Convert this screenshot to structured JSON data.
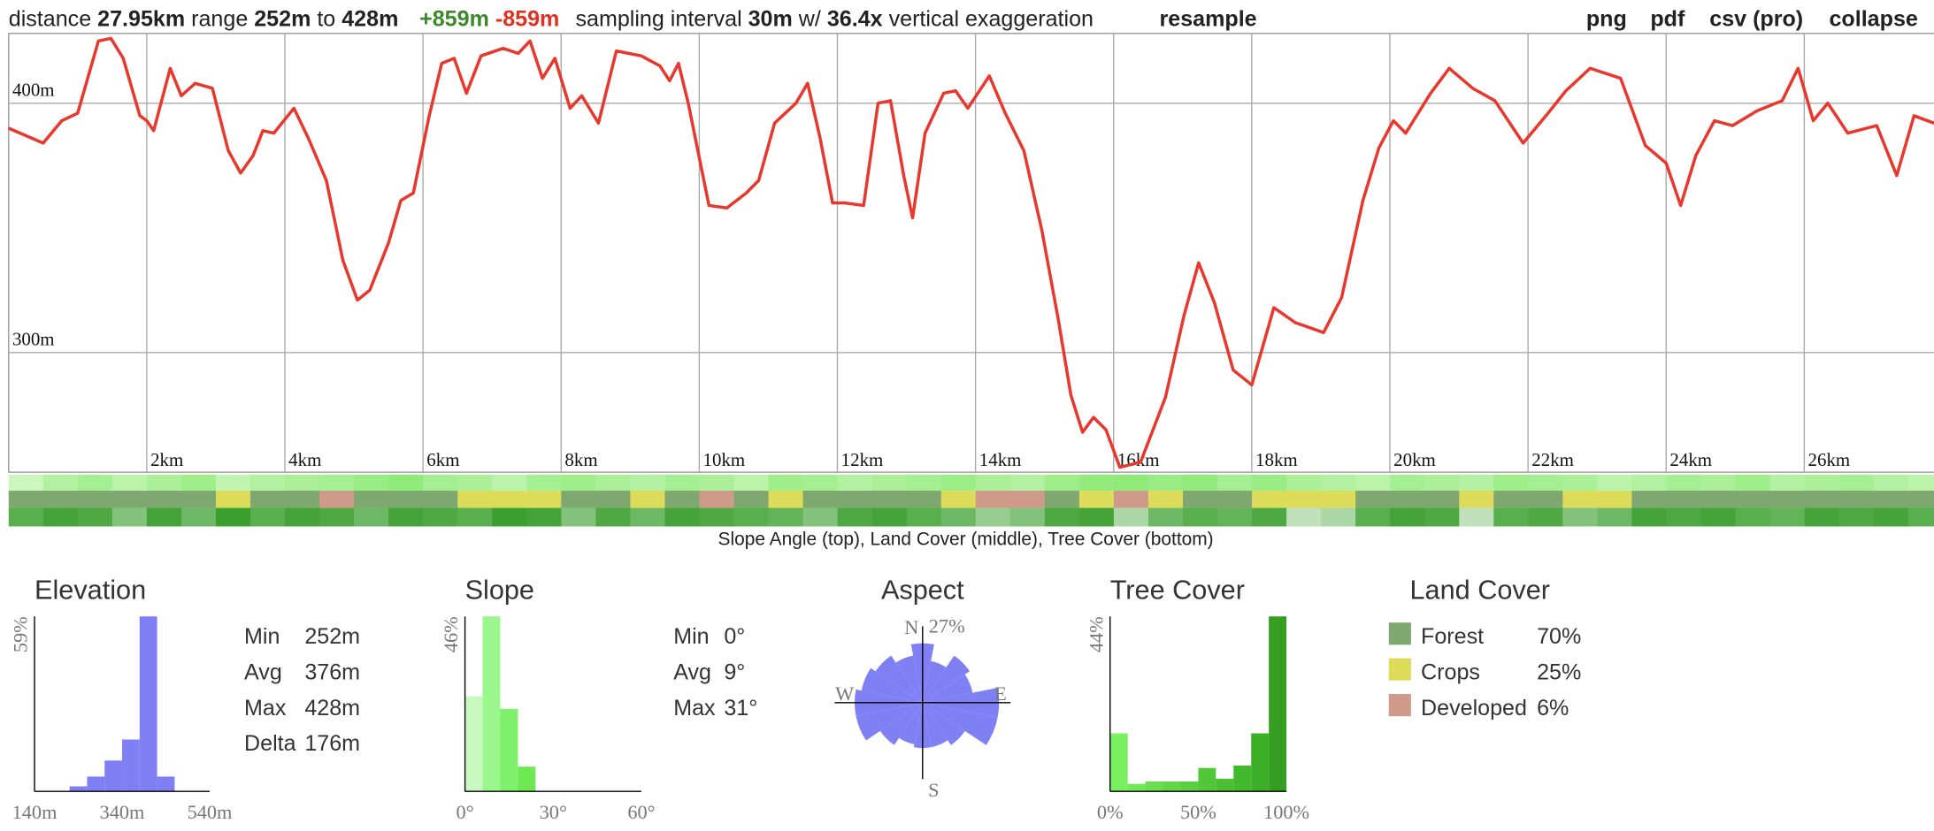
{
  "header": {
    "distance_label": "distance",
    "distance": "27.95km",
    "range_label": "range",
    "range_min": "252m",
    "to": "to",
    "range_max": "428m",
    "gain": "+859m",
    "loss": "-859m",
    "sampling_label": "sampling interval",
    "sampling": "30m",
    "with": "w/",
    "exaggeration": "36.4x",
    "exaggeration_label": "vertical exaggeration",
    "resample": "resample",
    "links": [
      "png",
      "pdf",
      "csv",
      "(pro)",
      "collapse"
    ]
  },
  "chart_data": [
    {
      "type": "line",
      "color": "#e8372c",
      "grid": true,
      "x": [
        0,
        0.5,
        0.77,
        1.0,
        1.3,
        1.48,
        1.66,
        1.9,
        2.0,
        2.1,
        2.34,
        2.5,
        2.7,
        2.95,
        3.18,
        3.36,
        3.54,
        3.68,
        3.84,
        4.13,
        4.34,
        4.6,
        4.84,
        5.05,
        5.23,
        5.5,
        5.68,
        5.86,
        6.09,
        6.27,
        6.45,
        6.63,
        6.84,
        7.16,
        7.38,
        7.55,
        7.73,
        7.91,
        8.13,
        8.3,
        8.54,
        8.8,
        9.16,
        9.43,
        9.57,
        9.7,
        9.84,
        10.14,
        10.4,
        10.68,
        10.86,
        11.09,
        11.4,
        11.57,
        11.75,
        11.93,
        12.1,
        12.38,
        12.59,
        12.77,
        12.96,
        13.09,
        13.27,
        13.54,
        13.71,
        13.89,
        14.2,
        14.43,
        14.7,
        14.96,
        15.2,
        15.38,
        15.55,
        15.71,
        15.89,
        16.09,
        16.39,
        16.75,
        17.02,
        17.23,
        17.46,
        17.73,
        18.0,
        18.32,
        18.63,
        19.04,
        19.3,
        19.61,
        19.84,
        20.05,
        20.23,
        20.59,
        20.86,
        21.2,
        21.52,
        21.93,
        22.29,
        22.55,
        22.9,
        23.34,
        23.7,
        24.0,
        24.21,
        24.43,
        24.7,
        24.96,
        25.32,
        25.68,
        25.91,
        26.13,
        26.34,
        26.63,
        27.05,
        27.34,
        27.59,
        27.88
      ],
      "values": [
        390,
        384,
        393,
        396,
        425,
        426,
        418,
        395,
        393,
        389,
        414,
        403,
        408,
        406,
        381,
        372,
        379,
        389,
        388,
        398,
        386,
        369,
        337,
        321,
        325,
        344,
        361,
        364,
        395,
        416,
        418,
        404,
        419,
        422,
        420,
        425,
        410,
        418,
        398,
        403,
        392,
        421,
        419,
        415,
        409,
        416,
        400,
        359,
        358,
        364,
        369,
        392,
        400,
        408,
        386,
        360,
        360,
        359,
        400,
        401,
        371,
        354,
        388,
        404,
        405,
        398,
        411,
        396,
        381,
        349,
        313,
        283,
        268,
        274,
        269,
        254,
        256,
        282,
        315,
        336,
        320,
        293,
        287,
        318,
        312,
        308,
        322,
        361,
        382,
        393,
        388,
        404,
        414,
        406,
        401,
        384,
        396,
        405,
        414,
        410,
        383,
        376,
        359,
        379,
        393,
        391,
        397,
        401,
        414,
        393,
        400,
        388,
        391,
        371,
        395,
        392
      ],
      "xlim": [
        0,
        27.95
      ],
      "ylim": [
        252,
        428
      ],
      "xticks": [
        {
          "value": 2,
          "label": "2km"
        },
        {
          "value": 4,
          "label": "4km"
        },
        {
          "value": 6,
          "label": "6km"
        },
        {
          "value": 8,
          "label": "8km"
        },
        {
          "value": 10,
          "label": "10km"
        },
        {
          "value": 12,
          "label": "12km"
        },
        {
          "value": 14,
          "label": "14km"
        },
        {
          "value": 16,
          "label": "16km"
        },
        {
          "value": 18,
          "label": "18km"
        },
        {
          "value": 20,
          "label": "20km"
        },
        {
          "value": 22,
          "label": "22km"
        },
        {
          "value": 24,
          "label": "24km"
        },
        {
          "value": 26,
          "label": "26km"
        }
      ],
      "yticks": [
        {
          "value": 300,
          "label": "300m"
        },
        {
          "value": 400,
          "label": "400m"
        }
      ]
    },
    {
      "type": "histogram",
      "title": "Elevation",
      "color": "#8080f5",
      "bins": [
        220,
        260,
        300,
        340,
        380,
        420,
        460
      ],
      "values": [
        1.7,
        5,
        10.4,
        17.5,
        59,
        5
      ],
      "xlim": [
        140,
        540
      ],
      "ylim": [
        0,
        59
      ],
      "xticks": [
        {
          "value": 140,
          "label": "140m"
        },
        {
          "value": 340,
          "label": "340m"
        },
        {
          "value": 540,
          "label": "540m"
        }
      ],
      "yticks": [
        {
          "value": 59,
          "label": "59%"
        }
      ]
    },
    {
      "type": "histogram",
      "title": "Slope",
      "colors": [
        "#c8f7c0",
        "#9af78c",
        "#7ef06c",
        "#6ee850"
      ],
      "bins": [
        0,
        6,
        12,
        18,
        24
      ],
      "values": [
        25,
        46,
        21.7,
        6.5
      ],
      "xlim": [
        0,
        60
      ],
      "ylim": [
        0,
        46
      ],
      "xticks": [
        {
          "value": 0,
          "label": "0°"
        },
        {
          "value": 30,
          "label": "30°"
        },
        {
          "value": 60,
          "label": "60°"
        }
      ],
      "yticks": [
        {
          "value": 46,
          "label": "46%"
        }
      ]
    },
    {
      "type": "rose",
      "title": "Aspect",
      "color": "#8080f5",
      "categories": [
        "N",
        null,
        null,
        null,
        "E",
        null,
        null,
        null,
        "S",
        null,
        null,
        null,
        "W",
        null,
        null,
        null
      ],
      "values": [
        21,
        15,
        20,
        18,
        27,
        27,
        18,
        16,
        16,
        15,
        18,
        24,
        24,
        22,
        20,
        17
      ],
      "rlim": [
        0,
        27
      ],
      "rticks": [
        {
          "value": 27,
          "label": "27%"
        }
      ]
    },
    {
      "type": "histogram",
      "title": "Tree Cover",
      "colors": [
        "#7af060",
        "#72e858",
        "#6ae050",
        "#62d848",
        "#5ad040",
        "#52c838",
        "#4ac030",
        "#42b82c",
        "#3cae28",
        "#379e24"
      ],
      "bins": [
        0,
        10,
        20,
        30,
        40,
        50,
        60,
        70,
        80,
        90,
        100
      ],
      "values": [
        14.6,
        1.9,
        2.5,
        2.5,
        2.5,
        5.9,
        3.2,
        6.5,
        14.6,
        44
      ],
      "xlim": [
        0,
        100
      ],
      "ylim": [
        0,
        44
      ],
      "xticks": [
        {
          "value": 0,
          "label": "0%"
        },
        {
          "value": 50,
          "label": "50%"
        },
        {
          "value": 100,
          "label": "100%"
        }
      ],
      "yticks": [
        {
          "value": 44,
          "label": "44%"
        }
      ]
    }
  ],
  "strips": {
    "caption": "Slope Angle (top), Land Cover (middle), Tree Cover (bottom)",
    "slope": [
      3,
      8,
      12,
      6,
      10,
      14,
      5,
      8,
      10,
      12,
      16,
      20,
      12,
      10,
      6,
      12,
      14,
      10,
      8,
      12,
      10,
      6,
      14,
      12,
      8,
      10,
      12,
      15,
      10,
      8,
      14,
      18,
      20,
      16,
      18,
      12,
      16,
      10,
      8,
      6,
      12,
      10,
      8,
      14,
      12,
      10,
      6,
      8,
      12,
      10,
      14,
      8,
      10,
      12,
      8,
      6
    ],
    "land_cover": [
      "Forest",
      "Forest",
      "Forest",
      "Forest",
      "Forest",
      "Forest",
      "Crops",
      "Forest",
      "Forest",
      "Developed",
      "Forest",
      "Forest",
      "Forest",
      "Crops",
      "Crops",
      "Crops",
      "Forest",
      "Forest",
      "Crops",
      "Forest",
      "Developed",
      "Forest",
      "Crops",
      "Forest",
      "Forest",
      "Forest",
      "Forest",
      "Crops",
      "Developed",
      "Developed",
      "Forest",
      "Crops",
      "Developed",
      "Crops",
      "Forest",
      "Forest",
      "Crops",
      "Crops",
      "Crops",
      "Forest",
      "Forest",
      "Forest",
      "Crops",
      "Forest",
      "Forest",
      "Crops",
      "Crops",
      "Forest",
      "Forest",
      "Forest",
      "Forest",
      "Forest",
      "Forest",
      "Forest",
      "Forest",
      "Forest"
    ],
    "tree_cover": [
      80,
      90,
      85,
      60,
      90,
      70,
      95,
      80,
      90,
      85,
      70,
      90,
      85,
      80,
      95,
      90,
      60,
      85,
      70,
      90,
      85,
      80,
      75,
      60,
      85,
      90,
      80,
      70,
      50,
      60,
      85,
      90,
      40,
      70,
      80,
      75,
      85,
      30,
      40,
      80,
      90,
      85,
      30,
      80,
      85,
      60,
      70,
      90,
      85,
      90,
      80,
      75,
      90,
      85,
      90,
      80
    ]
  },
  "elevation_stats": [
    [
      "Min",
      "252m"
    ],
    [
      "Avg",
      "376m"
    ],
    [
      "Max",
      "428m"
    ],
    [
      "Delta",
      "176m"
    ]
  ],
  "slope_stats": [
    [
      "Min",
      "0°"
    ],
    [
      "Avg",
      "9°"
    ],
    [
      "Max",
      "31°"
    ]
  ],
  "land_cover": {
    "title": "Land Cover",
    "items": [
      {
        "name": "Forest",
        "color": "#7ea86f",
        "share": "70%"
      },
      {
        "name": "Crops",
        "color": "#dcdc5a",
        "share": "25%"
      },
      {
        "name": "Developed",
        "color": "#d09a8a",
        "share": "6%"
      }
    ]
  }
}
